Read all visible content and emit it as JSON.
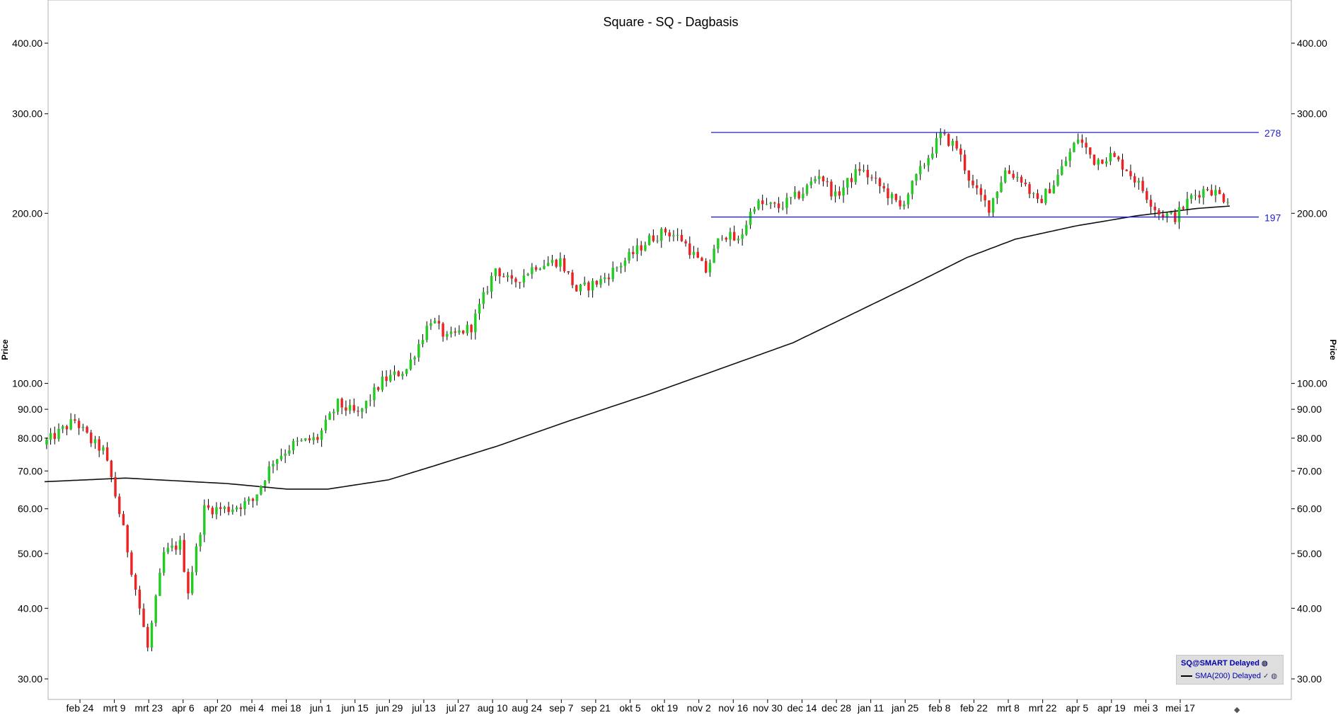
{
  "chart_data": {
    "type": "candlestick",
    "title": "Square - SQ - Dagbasis",
    "ylabel": "Price",
    "yscale": "log",
    "ylim": [
      28,
      450
    ],
    "yticks": [
      "400.00",
      "300.00",
      "200.00",
      "100.00",
      "90.00",
      "80.00",
      "70.00",
      "60.00",
      "50.00",
      "40.00",
      "30.00"
    ],
    "xticks": [
      "feb 24",
      "mrt 9",
      "mrt 23",
      "apr 6",
      "apr 20",
      "mei 4",
      "mei 18",
      "jun 1",
      "jun 15",
      "jun 29",
      "jul 13",
      "jul 27",
      "aug 10",
      "aug 24",
      "sep 7",
      "sep 21",
      "okt 5",
      "okt 19",
      "nov 2",
      "nov 16",
      "nov 30",
      "dec 14",
      "dec 28",
      "jan 11",
      "jan 25",
      "feb 8",
      "feb 22",
      "mrt 8",
      "mrt 22",
      "apr 5",
      "apr 19",
      "mei 3",
      "mei 17"
    ],
    "grid": false,
    "up_color": "#22cc22",
    "down_color": "#ee2222",
    "trend_keypoints": [
      {
        "t": 0,
        "p": 78
      },
      {
        "t": 8,
        "p": 86
      },
      {
        "t": 12,
        "p": 79
      },
      {
        "t": 15,
        "p": 76
      },
      {
        "t": 17,
        "p": 68
      },
      {
        "t": 20,
        "p": 55
      },
      {
        "t": 24,
        "p": 40
      },
      {
        "t": 26,
        "p": 34
      },
      {
        "t": 30,
        "p": 50
      },
      {
        "t": 34,
        "p": 52
      },
      {
        "t": 36,
        "p": 43
      },
      {
        "t": 40,
        "p": 60
      },
      {
        "t": 46,
        "p": 60
      },
      {
        "t": 52,
        "p": 62
      },
      {
        "t": 57,
        "p": 73
      },
      {
        "t": 62,
        "p": 78
      },
      {
        "t": 68,
        "p": 80
      },
      {
        "t": 73,
        "p": 92
      },
      {
        "t": 78,
        "p": 88
      },
      {
        "t": 84,
        "p": 101
      },
      {
        "t": 90,
        "p": 106
      },
      {
        "t": 96,
        "p": 130
      },
      {
        "t": 100,
        "p": 120
      },
      {
        "t": 106,
        "p": 126
      },
      {
        "t": 112,
        "p": 160
      },
      {
        "t": 116,
        "p": 150
      },
      {
        "t": 122,
        "p": 162
      },
      {
        "t": 128,
        "p": 165
      },
      {
        "t": 132,
        "p": 146
      },
      {
        "t": 138,
        "p": 152
      },
      {
        "t": 144,
        "p": 165
      },
      {
        "t": 150,
        "p": 180
      },
      {
        "t": 154,
        "p": 186
      },
      {
        "t": 158,
        "p": 180
      },
      {
        "t": 164,
        "p": 158
      },
      {
        "t": 168,
        "p": 185
      },
      {
        "t": 172,
        "p": 178
      },
      {
        "t": 176,
        "p": 208
      },
      {
        "t": 182,
        "p": 205
      },
      {
        "t": 188,
        "p": 218
      },
      {
        "t": 192,
        "p": 235
      },
      {
        "t": 196,
        "p": 214
      },
      {
        "t": 202,
        "p": 240
      },
      {
        "t": 208,
        "p": 220
      },
      {
        "t": 212,
        "p": 205
      },
      {
        "t": 218,
        "p": 245
      },
      {
        "t": 222,
        "p": 275
      },
      {
        "t": 226,
        "p": 262
      },
      {
        "t": 230,
        "p": 222
      },
      {
        "t": 234,
        "p": 205
      },
      {
        "t": 238,
        "p": 238
      },
      {
        "t": 242,
        "p": 230
      },
      {
        "t": 246,
        "p": 208
      },
      {
        "t": 250,
        "p": 226
      },
      {
        "t": 256,
        "p": 272
      },
      {
        "t": 260,
        "p": 248
      },
      {
        "t": 264,
        "p": 253
      },
      {
        "t": 268,
        "p": 240
      },
      {
        "t": 272,
        "p": 220
      },
      {
        "t": 276,
        "p": 200
      },
      {
        "t": 280,
        "p": 197
      },
      {
        "t": 284,
        "p": 214
      },
      {
        "t": 288,
        "p": 222
      },
      {
        "t": 292,
        "p": 213
      }
    ],
    "sma": {
      "name": "SMA(200)",
      "keypoints": [
        {
          "t": 0,
          "p": 67
        },
        {
          "t": 20,
          "p": 68
        },
        {
          "t": 45,
          "p": 66.5
        },
        {
          "t": 60,
          "p": 65
        },
        {
          "t": 70,
          "p": 65
        },
        {
          "t": 85,
          "p": 67.5
        },
        {
          "t": 95,
          "p": 71
        },
        {
          "t": 112,
          "p": 77.5
        },
        {
          "t": 130,
          "p": 86
        },
        {
          "t": 150,
          "p": 96
        },
        {
          "t": 170,
          "p": 108
        },
        {
          "t": 185,
          "p": 118
        },
        {
          "t": 200,
          "p": 133
        },
        {
          "t": 215,
          "p": 150
        },
        {
          "t": 228,
          "p": 167
        },
        {
          "t": 240,
          "p": 180
        },
        {
          "t": 255,
          "p": 190
        },
        {
          "t": 270,
          "p": 198
        },
        {
          "t": 285,
          "p": 204
        },
        {
          "t": 293,
          "p": 206
        }
      ]
    },
    "hlines": [
      {
        "value": 278,
        "label": "278"
      },
      {
        "value": 197,
        "label": "197"
      }
    ]
  },
  "legend": {
    "main": "SQ@SMART Delayed",
    "sma": "SMA(200) Delayed",
    "check_icon": "check-icon",
    "globe_icon": "globe-icon"
  }
}
